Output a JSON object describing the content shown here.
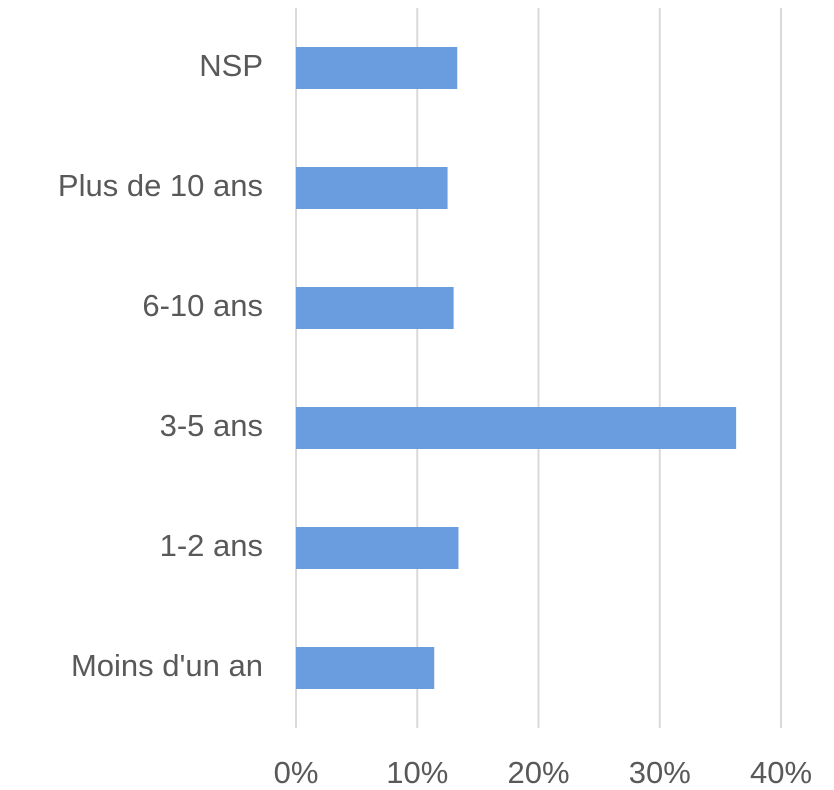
{
  "chart_data": {
    "type": "barh",
    "categories": [
      "NSP",
      "Plus de 10 ans",
      "6-10 ans",
      "3-5 ans",
      "1-2 ans",
      "Moins d'un an"
    ],
    "values": [
      13.3,
      12.5,
      13.0,
      36.3,
      13.4,
      11.4
    ],
    "color": "#6a9ce0",
    "xlim": [
      0,
      40
    ],
    "xticks": [
      {
        "value": 0,
        "label": "0%"
      },
      {
        "value": 10,
        "label": "10%"
      },
      {
        "value": 20,
        "label": "20%"
      },
      {
        "value": 30,
        "label": "30%"
      },
      {
        "value": 40,
        "label": "40%"
      }
    ],
    "grid": true
  }
}
